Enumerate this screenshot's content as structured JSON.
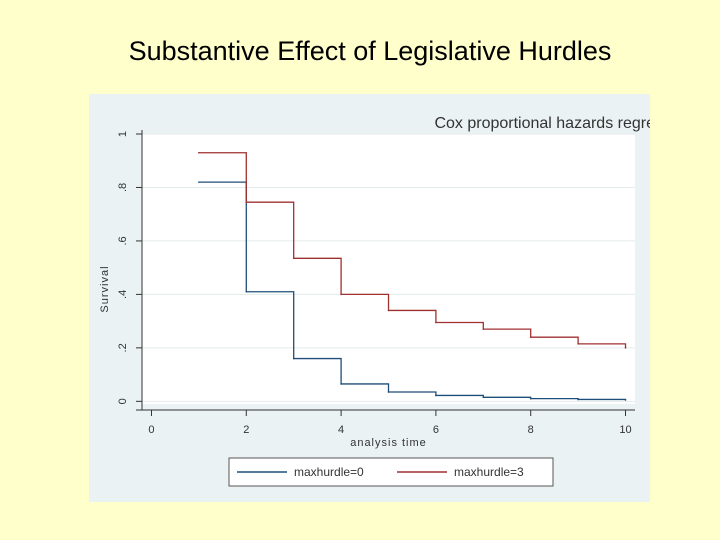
{
  "slide": {
    "title": "Substantive Effect of Legislative Hurdles"
  },
  "chart_data": {
    "type": "line",
    "step": true,
    "title": "Cox proportional hazards regre",
    "xlabel": "analysis time",
    "ylabel": "Survival",
    "xlim": [
      0,
      10
    ],
    "ylim": [
      0,
      1
    ],
    "x_ticks": [
      0,
      2,
      4,
      6,
      8,
      10
    ],
    "x_tick_labels": [
      "0",
      "2",
      "4",
      "6",
      "8",
      "10"
    ],
    "y_ticks": [
      0,
      0.2,
      0.4,
      0.6,
      0.8,
      1
    ],
    "y_tick_labels": [
      "0",
      ".2",
      ".4",
      ".6",
      ".8",
      "1"
    ],
    "grid": true,
    "legend_position": "bottom",
    "series": [
      {
        "name": "maxhurdle=0",
        "color": "#1F4E79",
        "x": [
          1,
          2,
          3,
          4,
          5,
          6,
          7,
          8,
          9,
          10
        ],
        "y": [
          0.82,
          0.41,
          0.16,
          0.065,
          0.035,
          0.022,
          0.015,
          0.01,
          0.007,
          0.005
        ]
      },
      {
        "name": "maxhurdle=3",
        "color": "#A03030",
        "x": [
          1,
          2,
          3,
          4,
          5,
          6,
          7,
          8,
          9,
          10
        ],
        "y": [
          0.93,
          0.745,
          0.535,
          0.4,
          0.34,
          0.295,
          0.27,
          0.24,
          0.215,
          0.2
        ]
      }
    ]
  }
}
